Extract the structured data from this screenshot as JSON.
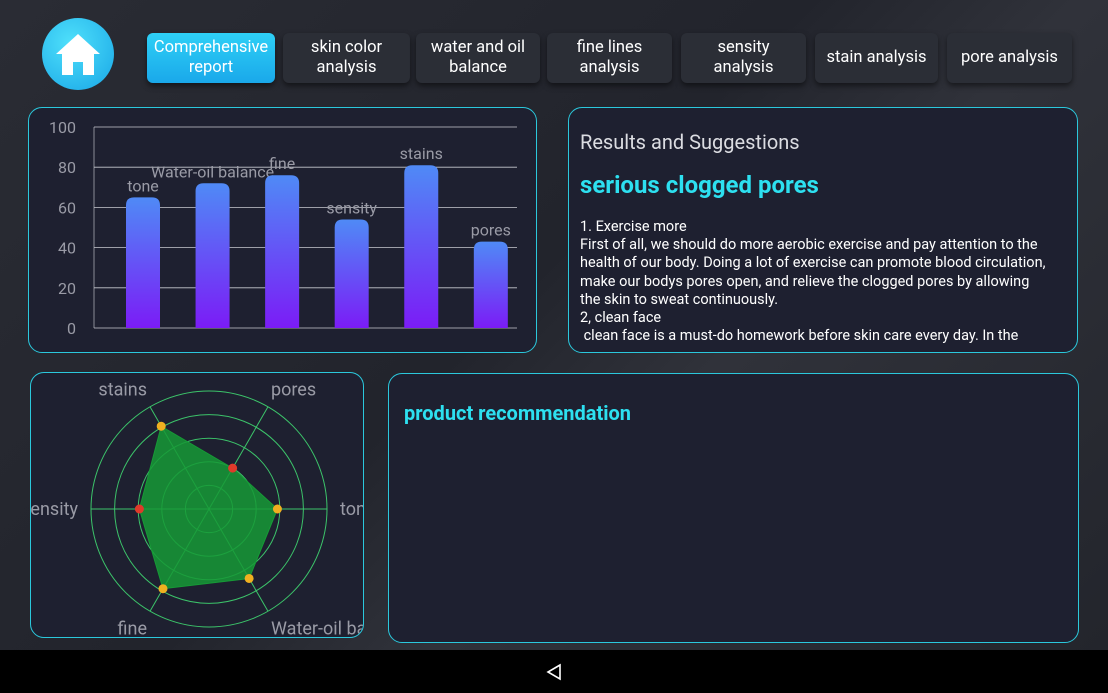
{
  "header": {
    "tabs": [
      "Comprehensive report",
      "skin color analysis",
      "water and oil balance",
      "fine lines analysis",
      "sensity analysis",
      "stain analysis",
      "pore analysis"
    ],
    "active_tab": 0
  },
  "bar_chart": {
    "type": "bar",
    "categories": [
      "tone",
      "Water-oil balance",
      "fine",
      "sensity",
      "stains",
      "pores"
    ],
    "values": [
      65,
      72,
      76,
      54,
      81,
      43
    ],
    "ylim": [
      0,
      100
    ],
    "yticks": [
      0,
      20,
      40,
      60,
      80,
      100
    ],
    "grid": true,
    "colors": [
      "#4f8af6",
      "#7b1cf6"
    ]
  },
  "radar_chart": {
    "type": "radar",
    "categories": [
      "tone",
      "Water-oil balance",
      "fine",
      "sensity",
      "stains",
      "pores"
    ],
    "values": [
      58,
      68,
      78,
      59,
      81,
      40
    ],
    "rlim": [
      0,
      100
    ],
    "rticks": [
      20,
      40,
      60,
      80,
      100
    ],
    "fill": "#169a36",
    "point_colors": [
      "#f0b020",
      "#f0b020",
      "#f0b020",
      "#e03a2a",
      "#f0b020",
      "#e03a2a"
    ]
  },
  "results": {
    "title": "Results and Suggestions",
    "headline": "serious clogged pores",
    "lines": [
      "1. Exercise more",
      "First of all, we should do more aerobic exercise and pay attention to the",
      "health of our body. Doing a lot of exercise can promote blood circulation,",
      "make our bodys pores open, and relieve the clogged pores by allowing",
      "the skin to sweat continuously.",
      "2, clean face",
      " clean face is a must-do homework before skin care every day. In the"
    ]
  },
  "products": {
    "title": "product recommendation"
  }
}
